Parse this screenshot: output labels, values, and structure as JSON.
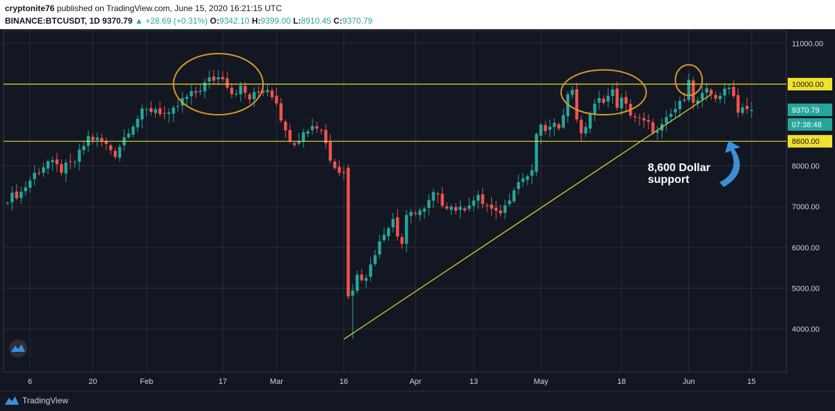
{
  "header": {
    "line1_user": "cryptonite76",
    "line1_rest": "published on TradingView.com, June 15, 2020 16:21:15 UTC",
    "symbol": "BINANCE:BTCUSDT, 1D",
    "last": "9370.79",
    "change": "+28.69 (+0.31%)",
    "o_label": "O:",
    "o_value": "9342.10",
    "h_label": "H:",
    "h_value": "9399.00",
    "l_label": "L:",
    "l_value": "8910.45",
    "c_label": "C:",
    "c_value": "9370.79"
  },
  "footer": {
    "brand": "TradingView"
  },
  "colors": {
    "up": "#26a69a",
    "down": "#ef5350",
    "background": "#131722",
    "grid": "#2a2e39",
    "level_line": "#f0e130",
    "circle": "#d49a2a",
    "arrow": "#3a8fd9"
  },
  "chart_data": {
    "type": "candlestick",
    "x_tick_labels": [
      "6",
      "20",
      "Feb",
      "17",
      "Mar",
      "16",
      "Apr",
      "13",
      "May",
      "18",
      "Jun",
      "15"
    ],
    "y_tick_labels": [
      "11000.00",
      "10000.00",
      "9370.79",
      "8000.00",
      "7000.00",
      "6000.00",
      "5000.00",
      "4000.00"
    ],
    "ylim": [
      3500,
      11500
    ],
    "price_labels": {
      "resistance": "10000.00",
      "last": "9370.79",
      "countdown": "07:38:48",
      "support": "8600.00"
    },
    "horizontal_levels": [
      10000,
      8600
    ],
    "annotation": {
      "line1": "8,600 Dollar",
      "line2": "support"
    },
    "close_path": [
      [
        0,
        7200
      ],
      [
        3,
        7350
      ],
      [
        6,
        7800
      ],
      [
        9,
        8100
      ],
      [
        12,
        7900
      ],
      [
        15,
        8100
      ],
      [
        18,
        8700
      ],
      [
        21,
        8600
      ],
      [
        24,
        8300
      ],
      [
        27,
        8900
      ],
      [
        30,
        9300
      ],
      [
        33,
        9400
      ],
      [
        36,
        9200
      ],
      [
        39,
        9600
      ],
      [
        42,
        9800
      ],
      [
        45,
        10100
      ],
      [
        48,
        10200
      ],
      [
        50,
        9800
      ],
      [
        52,
        9900
      ],
      [
        54,
        9650
      ],
      [
        56,
        9800
      ],
      [
        58,
        9900
      ],
      [
        60,
        9600
      ],
      [
        62,
        8800
      ],
      [
        64,
        8600
      ],
      [
        66,
        8800
      ],
      [
        68,
        9000
      ],
      [
        70,
        8900
      ],
      [
        72,
        8200
      ],
      [
        74,
        7900
      ],
      [
        75,
        7800
      ],
      [
        76,
        5000
      ],
      [
        77,
        4900
      ],
      [
        78,
        5400
      ],
      [
        79,
        5300
      ],
      [
        80,
        5200
      ],
      [
        81,
        5600
      ],
      [
        82,
        5900
      ],
      [
        83,
        6200
      ],
      [
        84,
        6400
      ],
      [
        85,
        6500
      ],
      [
        86,
        6700
      ],
      [
        87,
        6300
      ],
      [
        88,
        6100
      ],
      [
        89,
        6700
      ],
      [
        90,
        6800
      ],
      [
        91,
        6900
      ],
      [
        93,
        6900
      ],
      [
        95,
        7300
      ],
      [
        97,
        7100
      ],
      [
        99,
        7000
      ],
      [
        101,
        6900
      ],
      [
        103,
        7100
      ],
      [
        105,
        7200
      ],
      [
        107,
        7000
      ],
      [
        109,
        6800
      ],
      [
        111,
        7000
      ],
      [
        113,
        7500
      ],
      [
        115,
        7700
      ],
      [
        117,
        7800
      ],
      [
        118,
        8800
      ],
      [
        119,
        8900
      ],
      [
        121,
        8900
      ],
      [
        123,
        9000
      ],
      [
        125,
        9700
      ],
      [
        126,
        9900
      ],
      [
        127,
        9200
      ],
      [
        128,
        8700
      ],
      [
        130,
        9300
      ],
      [
        132,
        9600
      ],
      [
        134,
        9700
      ],
      [
        135,
        9800
      ],
      [
        136,
        9500
      ],
      [
        137,
        9600
      ],
      [
        139,
        9300
      ],
      [
        141,
        9100
      ],
      [
        143,
        9000
      ],
      [
        145,
        8800
      ],
      [
        147,
        9100
      ],
      [
        149,
        9400
      ],
      [
        150,
        9500
      ],
      [
        151,
        9700
      ],
      [
        152,
        10200
      ],
      [
        153,
        9500
      ],
      [
        154,
        9600
      ],
      [
        156,
        9800
      ],
      [
        158,
        9700
      ],
      [
        160,
        9800
      ],
      [
        161,
        9900
      ],
      [
        162,
        9800
      ],
      [
        163,
        9300
      ],
      [
        164,
        9500
      ],
      [
        165,
        9400
      ],
      [
        166,
        9370
      ]
    ],
    "triangle_line": [
      [
        75,
        3750
      ],
      [
        157,
        9750
      ]
    ],
    "circles": [
      {
        "x": 47,
        "y": 10000,
        "w": 20,
        "h": 1500
      },
      {
        "x": 133,
        "y": 9800,
        "w": 19,
        "h": 1100
      },
      {
        "x": 152,
        "y": 10100,
        "w": 6,
        "h": 750
      }
    ]
  }
}
